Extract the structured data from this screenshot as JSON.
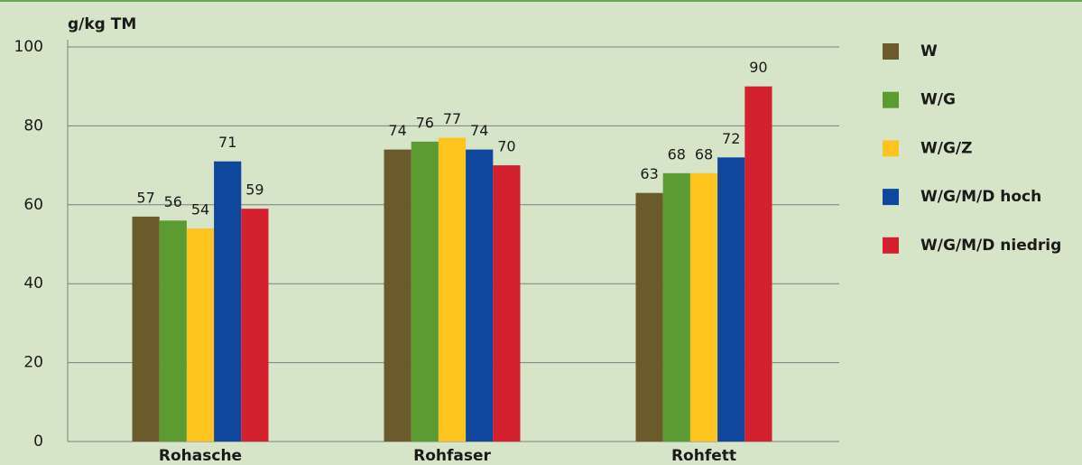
{
  "chart_data": {
    "type": "bar",
    "y_label": "g/kg TM",
    "categories": [
      "Rohasche",
      "Rohfaser",
      "Rohfett"
    ],
    "series": [
      {
        "name": "W",
        "color": "#6b5a2b",
        "values": [
          57,
          74,
          63
        ]
      },
      {
        "name": "W/G",
        "color": "#5c9a32",
        "values": [
          56,
          76,
          68
        ]
      },
      {
        "name": "W/G/Z",
        "color": "#fdc420",
        "values": [
          54,
          77,
          68
        ]
      },
      {
        "name": "W/G/M/D hoch",
        "color": "#0e479b",
        "values": [
          71,
          74,
          72
        ]
      },
      {
        "name": "W/G/M/D niedrig",
        "color": "#d32130",
        "values": [
          59,
          70,
          90
        ]
      }
    ],
    "ylim": [
      0,
      100
    ],
    "yticks": [
      0,
      20,
      40,
      60,
      80,
      100
    ],
    "grid": true,
    "legend": "right"
  }
}
